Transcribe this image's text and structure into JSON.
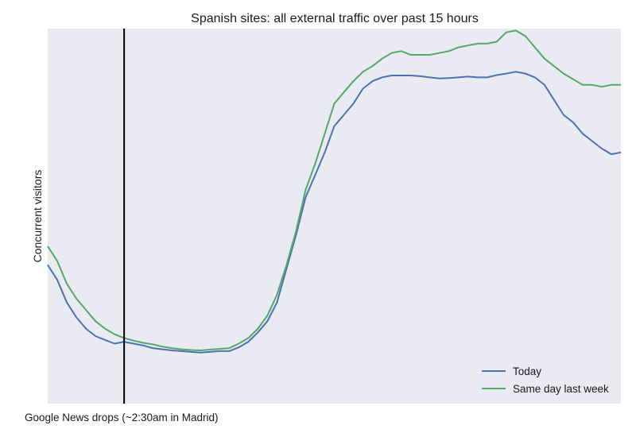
{
  "chart_data": {
    "type": "line",
    "title": "Spanish sites: all external traffic over past 15 hours",
    "xlabel": "",
    "ylabel": "Concurrent visitors",
    "x_ticks_visible": false,
    "y_ticks_visible": false,
    "grid": false,
    "background": "#eaeaf2",
    "legend_position": "lower-right",
    "xlim": [
      0,
      15
    ],
    "ylim": [
      0,
      1
    ],
    "annotation": {
      "text": "Google News drops (~2:30am in Madrid)",
      "x": 2.0,
      "line_color": "#000000"
    },
    "x": [
      0,
      0.25,
      0.5,
      0.75,
      1,
      1.25,
      1.5,
      1.75,
      2,
      2.25,
      2.5,
      2.75,
      3,
      3.25,
      3.5,
      3.75,
      4,
      4.25,
      4.5,
      4.75,
      5,
      5.25,
      5.5,
      5.75,
      6,
      6.25,
      6.5,
      6.75,
      7,
      7.25,
      7.5,
      7.75,
      8,
      8.25,
      8.5,
      8.75,
      9,
      9.25,
      9.5,
      9.75,
      10,
      10.25,
      10.5,
      10.75,
      11,
      11.25,
      11.5,
      11.75,
      12,
      12.25,
      12.5,
      12.75,
      13,
      13.25,
      13.5,
      13.75,
      14,
      14.25,
      14.5,
      14.75,
      15
    ],
    "series": [
      {
        "name": "Today",
        "color": "#4c72b0",
        "values": [
          0.37,
          0.33,
          0.27,
          0.23,
          0.2,
          0.18,
          0.17,
          0.16,
          0.165,
          0.16,
          0.155,
          0.148,
          0.145,
          0.142,
          0.14,
          0.138,
          0.136,
          0.138,
          0.14,
          0.14,
          0.15,
          0.165,
          0.19,
          0.22,
          0.27,
          0.36,
          0.45,
          0.55,
          0.61,
          0.67,
          0.74,
          0.77,
          0.8,
          0.84,
          0.86,
          0.87,
          0.875,
          0.875,
          0.875,
          0.873,
          0.87,
          0.867,
          0.868,
          0.87,
          0.872,
          0.87,
          0.87,
          0.876,
          0.88,
          0.885,
          0.88,
          0.87,
          0.85,
          0.81,
          0.77,
          0.75,
          0.72,
          0.7,
          0.68,
          0.665,
          0.67
        ]
      },
      {
        "name": "Same day last week",
        "color": "#55a868",
        "values": [
          0.42,
          0.38,
          0.32,
          0.28,
          0.25,
          0.22,
          0.2,
          0.185,
          0.175,
          0.168,
          0.162,
          0.158,
          0.152,
          0.148,
          0.145,
          0.143,
          0.142,
          0.144,
          0.146,
          0.148,
          0.16,
          0.175,
          0.2,
          0.235,
          0.29,
          0.37,
          0.46,
          0.57,
          0.64,
          0.72,
          0.8,
          0.83,
          0.86,
          0.885,
          0.9,
          0.92,
          0.935,
          0.94,
          0.93,
          0.93,
          0.93,
          0.935,
          0.94,
          0.95,
          0.955,
          0.96,
          0.96,
          0.965,
          0.99,
          0.995,
          0.98,
          0.95,
          0.92,
          0.9,
          0.88,
          0.865,
          0.85,
          0.85,
          0.845,
          0.85,
          0.85
        ]
      }
    ]
  }
}
